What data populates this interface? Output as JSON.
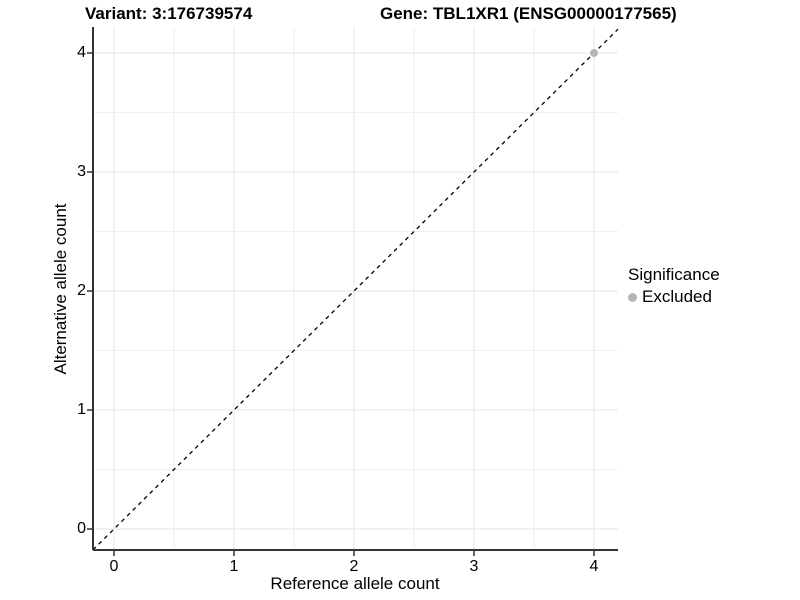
{
  "titles": {
    "left": "Variant: 3:176739574",
    "right": "Gene: TBL1XR1 (ENSG00000177565)"
  },
  "chart_data": {
    "type": "scatter",
    "xlabel": "Reference allele count",
    "ylabel": "Alternative allele count",
    "x_ticks": [
      0,
      1,
      2,
      3,
      4
    ],
    "y_ticks": [
      0,
      1,
      2,
      3,
      4
    ],
    "x_minor_ticks": [
      0.5,
      1.5,
      2.5,
      3.5
    ],
    "y_minor_ticks": [
      0.5,
      1.5,
      2.5,
      3.5
    ],
    "xlim": [
      -0.175,
      4.2
    ],
    "ylim": [
      -0.175,
      4.2
    ],
    "grid": true,
    "points": [
      {
        "x": 4,
        "y": 4,
        "series": "Excluded"
      }
    ],
    "abline": {
      "slope": 1,
      "intercept": 0,
      "style": "dashed"
    },
    "legend": {
      "title": "Significance",
      "position": "right",
      "items": [
        {
          "label": "Excluded",
          "color": "#b5b5b5"
        }
      ]
    }
  },
  "colors": {
    "background": "#ffffff",
    "grid_major": "#e4e4e4",
    "grid_minor": "#efefef",
    "axis_line": "#333333",
    "tick_mark": "#333333",
    "abline": "#000000",
    "point_excluded": "#b5b5b5",
    "text": "#000000"
  }
}
